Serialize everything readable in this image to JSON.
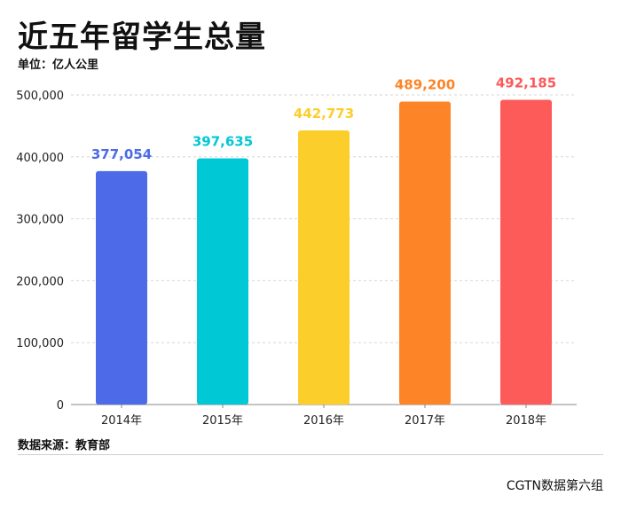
{
  "header": {
    "title": "近五年留学生总量",
    "unit": "单位：亿人公里"
  },
  "footer": {
    "source": "数据来源：教育部",
    "credit": "CGTN数据第六组"
  },
  "chart_data": {
    "type": "bar",
    "title": "近五年留学生总量",
    "xlabel": "",
    "ylabel": "",
    "categories": [
      "2014年",
      "2015年",
      "2016年",
      "2017年",
      "2018年"
    ],
    "values": [
      377054,
      397635,
      442773,
      489200,
      492185
    ],
    "value_labels": [
      "377,054",
      "397,635",
      "442,773",
      "489,200",
      "492,185"
    ],
    "colors": [
      "#4d6be8",
      "#00c8d4",
      "#fcce2b",
      "#fd8528",
      "#fd5a5a"
    ],
    "ylim": [
      0,
      500000
    ],
    "yticks": [
      0,
      100000,
      200000,
      300000,
      400000,
      500000
    ],
    "ytick_labels": [
      "0",
      "100,000",
      "200,000",
      "300,000",
      "400,000",
      "500,000"
    ],
    "grid": true
  }
}
